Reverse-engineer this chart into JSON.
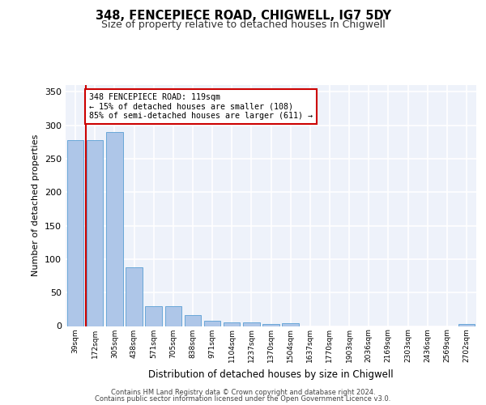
{
  "title1": "348, FENCEPIECE ROAD, CHIGWELL, IG7 5DY",
  "title2": "Size of property relative to detached houses in Chigwell",
  "xlabel": "Distribution of detached houses by size in Chigwell",
  "ylabel": "Number of detached properties",
  "bar_labels": [
    "39sqm",
    "172sqm",
    "305sqm",
    "438sqm",
    "571sqm",
    "705sqm",
    "838sqm",
    "971sqm",
    "1104sqm",
    "1237sqm",
    "1370sqm",
    "1504sqm",
    "1637sqm",
    "1770sqm",
    "1903sqm",
    "2036sqm",
    "2169sqm",
    "2303sqm",
    "2436sqm",
    "2569sqm",
    "2702sqm"
  ],
  "bar_values": [
    278,
    278,
    290,
    88,
    30,
    30,
    16,
    8,
    6,
    6,
    3,
    4,
    0,
    0,
    0,
    0,
    0,
    0,
    0,
    0,
    3
  ],
  "bar_color": "#aec6e8",
  "bar_edge_color": "#5a9fd4",
  "highlight_line_color": "#cc0000",
  "annotation_box_text": "348 FENCEPIECE ROAD: 119sqm\n← 15% of detached houses are smaller (108)\n85% of semi-detached houses are larger (611) →",
  "annotation_box_color": "#cc0000",
  "annotation_box_bg": "#ffffff",
  "ylim": [
    0,
    360
  ],
  "yticks": [
    0,
    50,
    100,
    150,
    200,
    250,
    300,
    350
  ],
  "footnote1": "Contains HM Land Registry data © Crown copyright and database right 2024.",
  "footnote2": "Contains public sector information licensed under the Open Government Licence v3.0.",
  "bg_color": "#eef2fa",
  "grid_color": "#ffffff"
}
